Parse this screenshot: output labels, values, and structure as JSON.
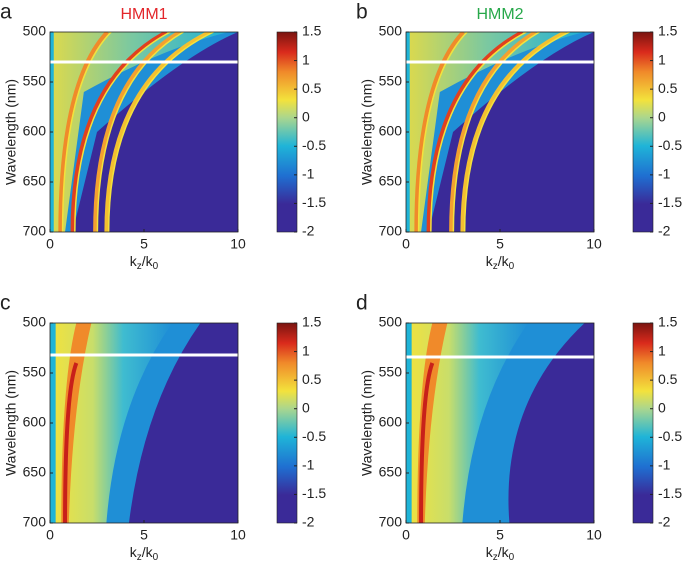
{
  "chart_data": [
    {
      "type": "heatmap",
      "panel_label": "a",
      "title": "HMM1",
      "title_color": "#e3262b",
      "ylabel": "Wavelength (nm)",
      "xlabel": [
        "k",
        "z",
        "/k",
        "0"
      ],
      "xlim": [
        0,
        10
      ],
      "xticks": [
        0,
        5,
        10
      ],
      "ylim": [
        500,
        700
      ],
      "yticks": [
        500,
        550,
        600,
        650,
        700
      ],
      "y_inverted": true,
      "clim": [
        -2,
        1.5
      ],
      "cticks": [
        -2,
        -1.5,
        -1,
        -0.5,
        0,
        0.5,
        1,
        1.5
      ],
      "hline": 530,
      "pattern": "modes"
    },
    {
      "type": "heatmap",
      "panel_label": "b",
      "title": "HMM2",
      "title_color": "#27a84a",
      "ylabel": "Wavelength (nm)",
      "xlabel": [
        "k",
        "z",
        "/k",
        "0"
      ],
      "xlim": [
        0,
        10
      ],
      "xticks": [
        0,
        5,
        10
      ],
      "ylim": [
        500,
        700
      ],
      "yticks": [
        500,
        550,
        600,
        650,
        700
      ],
      "y_inverted": true,
      "clim": [
        -2,
        1.5
      ],
      "cticks": [
        -2,
        -1.5,
        -1,
        -0.5,
        0,
        0.5,
        1,
        1.5
      ],
      "hline": 530,
      "pattern": "modes"
    },
    {
      "type": "heatmap",
      "panel_label": "c",
      "ylabel": "Wavelength (nm)",
      "xlabel": [
        "k",
        "z",
        "/k",
        "0"
      ],
      "xlim": [
        0,
        10
      ],
      "xticks": [
        0,
        5,
        10
      ],
      "ylim": [
        500,
        700
      ],
      "yticks": [
        500,
        550,
        600,
        650,
        700
      ],
      "y_inverted": true,
      "clim": [
        -2,
        1.5
      ],
      "cticks": [
        -2,
        -1.5,
        -1,
        -0.5,
        0,
        0.5,
        1,
        1.5
      ],
      "hline": 532,
      "pattern": "broad"
    },
    {
      "type": "heatmap",
      "panel_label": "d",
      "ylabel": "Wavelength (nm)",
      "xlabel": [
        "k",
        "z",
        "/k",
        "0"
      ],
      "xlim": [
        0,
        10
      ],
      "xticks": [
        0,
        5,
        10
      ],
      "ylim": [
        500,
        700
      ],
      "yticks": [
        500,
        550,
        600,
        650,
        700
      ],
      "y_inverted": true,
      "clim": [
        -2,
        1.5
      ],
      "cticks": [
        -2,
        -1.5,
        -1,
        -0.5,
        0,
        0.5,
        1,
        1.5
      ],
      "hline": 534,
      "pattern": "broad"
    }
  ]
}
